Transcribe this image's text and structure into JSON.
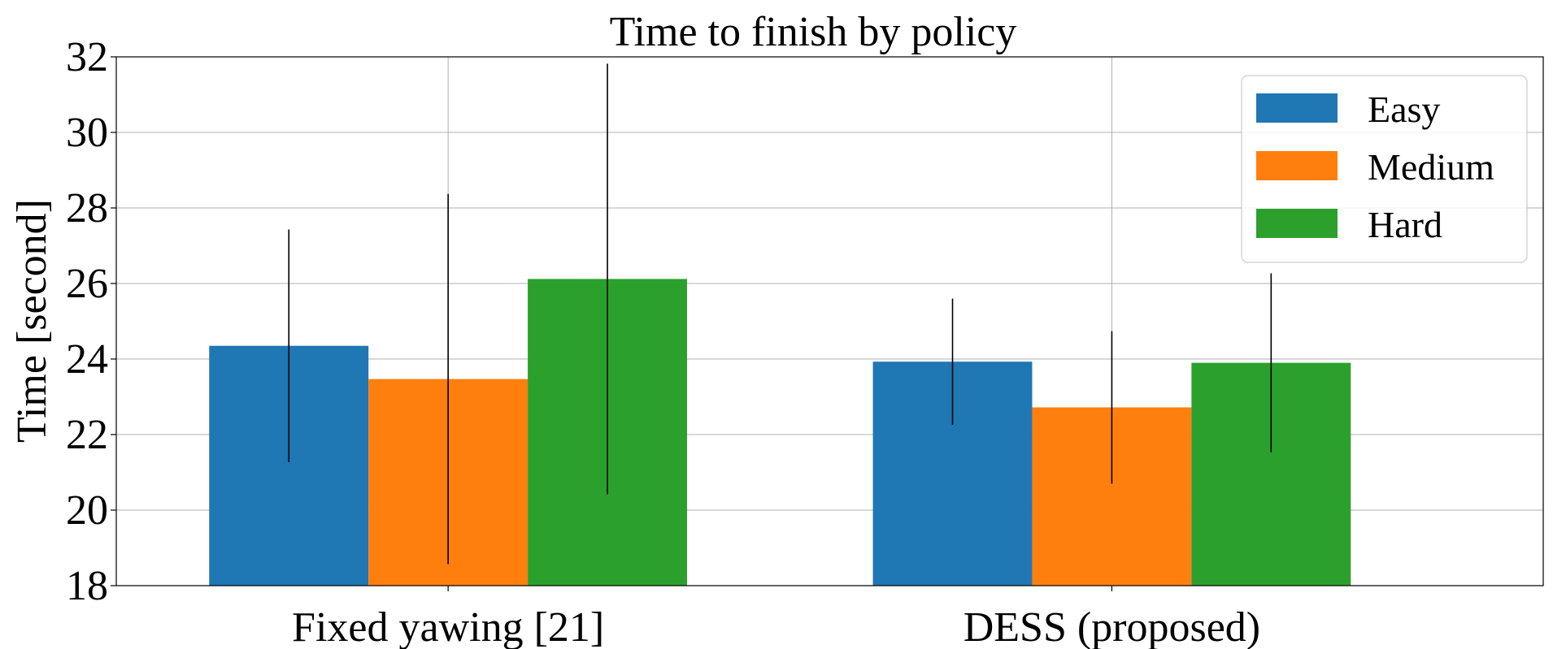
{
  "chart_data": {
    "type": "bar",
    "title": "Time to finish by policy",
    "xlabel": "",
    "ylabel": "Time [second]",
    "ylim": [
      18,
      32
    ],
    "yticks": [
      18,
      20,
      22,
      24,
      26,
      28,
      30,
      32
    ],
    "grid": true,
    "legend_position": "top-right",
    "categories": [
      "Fixed yawing [21]",
      "DESS (proposed)"
    ],
    "series": [
      {
        "name": "Easy",
        "color": "#1f77b4",
        "values": [
          24.35,
          23.93
        ],
        "errors": [
          3.08,
          1.67
        ]
      },
      {
        "name": "Medium",
        "color": "#ff7f0e",
        "values": [
          23.47,
          22.72
        ],
        "errors": [
          4.9,
          2.02
        ]
      },
      {
        "name": "Hard",
        "color": "#2ca02c",
        "values": [
          26.12,
          23.9
        ],
        "errors": [
          5.7,
          2.37
        ]
      }
    ]
  }
}
